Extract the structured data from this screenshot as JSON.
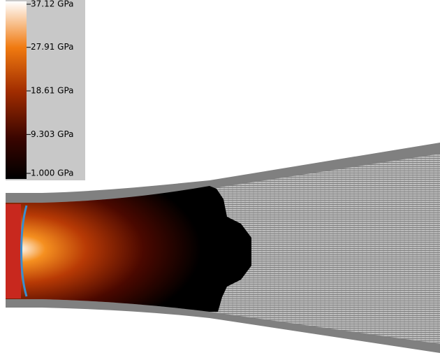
{
  "colorbar": {
    "lim": [
      1.0,
      37.12
    ],
    "ticks": [
      {
        "value": 37.12,
        "label": "37.12 GPa"
      },
      {
        "value": 27.91,
        "label": "27.91 GPa"
      },
      {
        "value": 18.61,
        "label": "18.61 GPa"
      },
      {
        "value": 9.303,
        "label": "9.303 GPa"
      },
      {
        "value": 1.0,
        "label": "1.000 GPa"
      }
    ]
  }
}
